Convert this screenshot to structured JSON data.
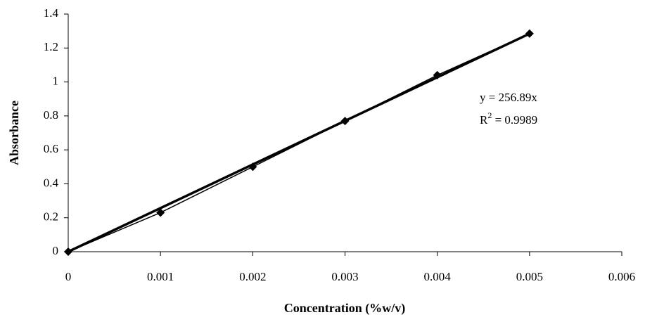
{
  "chart_data": {
    "type": "scatter",
    "x_label": "Concentration (%w/v)",
    "y_label": "Absorbance",
    "x": [
      0,
      0.001,
      0.002,
      0.003,
      0.004,
      0.005
    ],
    "series": [
      {
        "values": [
          0,
          0.23,
          0.5,
          0.77,
          1.04,
          1.285
        ],
        "color": "#000000"
      }
    ],
    "trendline": {
      "slope": 256.89,
      "label": "y = 256.89x",
      "r2_parts": [
        "R",
        "2",
        " = 0.9989"
      ]
    },
    "xlim": [
      0,
      0.006
    ],
    "xticks": [
      0,
      0.001,
      0.002,
      0.003,
      0.004,
      0.005,
      0.006
    ],
    "ylim": [
      0,
      1.4
    ],
    "yticks": [
      0,
      0.2,
      0.4,
      0.6,
      0.8,
      1,
      1.2,
      1.4
    ],
    "grid": false
  }
}
